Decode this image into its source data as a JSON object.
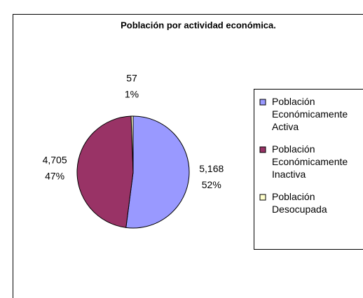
{
  "chart_data": {
    "type": "pie",
    "title": "Población por actividad económica.",
    "categories": [
      "Población Económicamente Activa",
      "Población Económicamente Inactiva",
      "Población Desocupada"
    ],
    "values": [
      5168,
      4705,
      57
    ],
    "value_labels": [
      "5,168",
      "4,705",
      "57"
    ],
    "percentages": [
      52,
      47,
      1
    ],
    "percentage_labels": [
      "52%",
      "47%",
      "1%"
    ],
    "colors": [
      "#9999ff",
      "#993366",
      "#ffffcc"
    ],
    "legend": "right"
  }
}
